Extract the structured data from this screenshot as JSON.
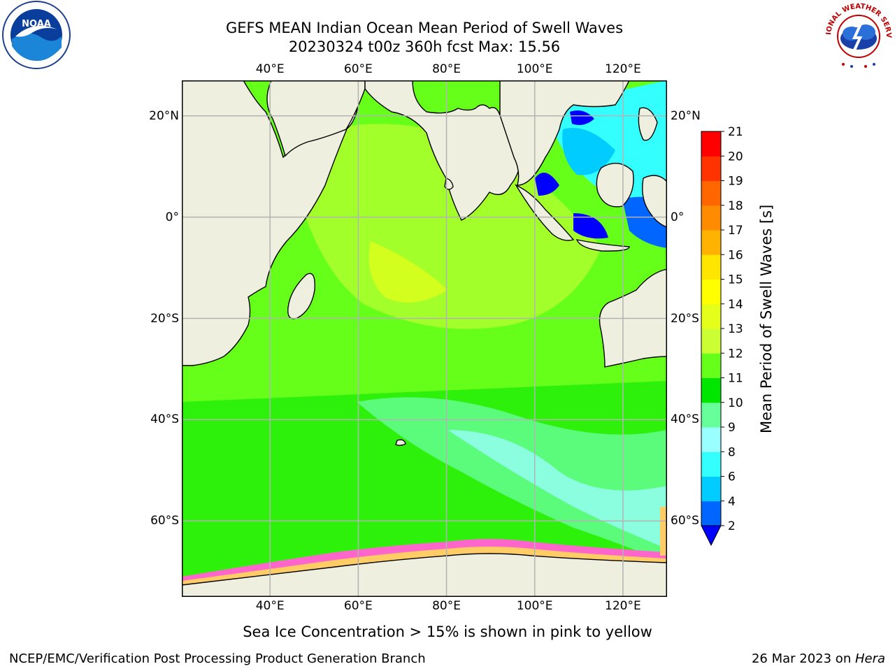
{
  "title": {
    "line1": "GEFS MEAN Indian Ocean Mean Period of Swell Waves",
    "line2": "20230324 t00z 360h fcst   Max: 15.56"
  },
  "map": {
    "lon_range": [
      20,
      130
    ],
    "lat_range": [
      -75,
      27
    ],
    "lon_ticks": [
      "40°E",
      "60°E",
      "80°E",
      "100°E",
      "120°E"
    ],
    "lon_tick_values": [
      40,
      60,
      80,
      100,
      120
    ],
    "lat_ticks": [
      "20°N",
      "0°",
      "20°S",
      "40°S",
      "60°S"
    ],
    "lat_tick_values": [
      20,
      0,
      -20,
      -40,
      -60
    ],
    "grid": true,
    "land_color": "#efefdf",
    "ocean_dominant_color": "#66ff1a"
  },
  "colorbar": {
    "title": "Mean Period of Swell Waves [s]",
    "levels": [
      "2",
      "4",
      "6",
      "8",
      "9",
      "10",
      "11",
      "12",
      "13",
      "14",
      "15",
      "16",
      "17",
      "18",
      "19",
      "20",
      "21"
    ],
    "colors": [
      "#0066ff",
      "#00ccff",
      "#33ffff",
      "#99ffff",
      "#66ff99",
      "#00e600",
      "#66ff1a",
      "#ccff33",
      "#e6ff1a",
      "#ffff00",
      "#ffe600",
      "#ffb300",
      "#ff8c00",
      "#ff6600",
      "#ff3300",
      "#ff0000"
    ],
    "extend_color": "#0000ff"
  },
  "logos": {
    "left_text": "NOAA",
    "right_text": "NATIONAL WEATHER SERVICE"
  },
  "note": "Sea Ice Concentration > 15% is shown in pink to yellow",
  "footer": {
    "left": "NCEP/EMC/Verification Post Processing Product Generation Branch",
    "right_date": "26 Mar 2023 on ",
    "right_host": "Hera"
  }
}
